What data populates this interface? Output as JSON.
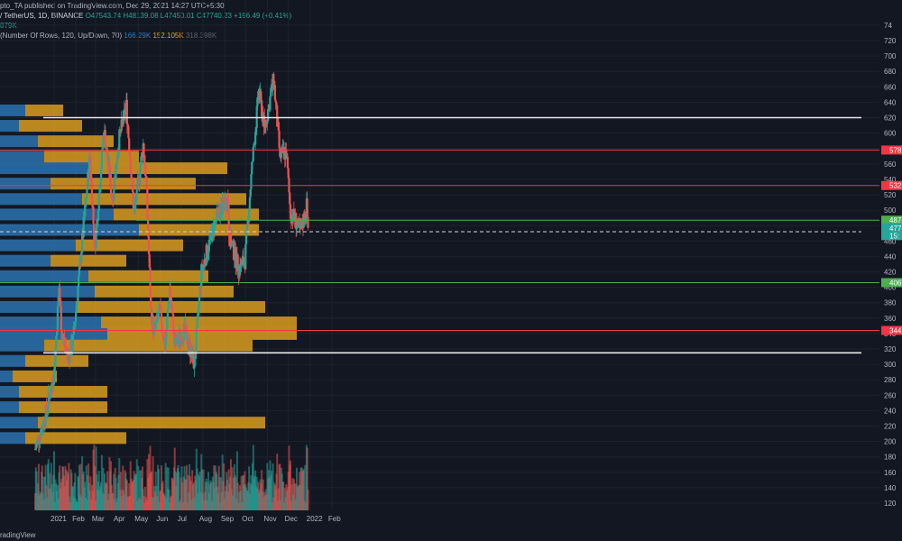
{
  "header": {
    "publisher": "pto_TA published on TradingView.com, Dec 29, 2021 14:27 UTC+5:30",
    "symbol": "/ TetherUS, 1D, BINANCE",
    "o": "O47543.74",
    "h": "H48139.08",
    "l": "L47450.01",
    "c": "C47740.23",
    "change": "+196.49 (+0.41%)",
    "vol": "879K",
    "vp_label": "(Number Of Rows, 120, Up/Down, 70)",
    "vp_up": "166.29K",
    "vp_down": "152.105K",
    "vp_total": "318.398K"
  },
  "brand": "radingView",
  "colors": {
    "bg": "#131722",
    "up": "#26a69a",
    "down": "#ef5350",
    "vp_up": "#2f7fc1",
    "vp_down": "#e6a520",
    "white_line": "#e8e8e8",
    "red_line": "#f23645",
    "green_line": "#4caf50"
  },
  "chart_data": {
    "type": "candlestick",
    "x_ticks": [
      "2021",
      "Feb",
      "Mar",
      "Apr",
      "May",
      "Jun",
      "Jul",
      "Aug",
      "Sep",
      "Oct",
      "Nov",
      "Dec",
      "2022",
      "Feb"
    ],
    "y_ticks": [
      "120",
      "140",
      "160",
      "180",
      "200",
      "220",
      "240",
      "260",
      "280",
      "300",
      "320",
      "340",
      "360",
      "380",
      "400",
      "420",
      "440",
      "460",
      "480",
      "500",
      "520",
      "540",
      "560",
      "580",
      "600",
      "620",
      "640",
      "660",
      "680",
      "700",
      "720",
      "74"
    ],
    "price_labels": [
      {
        "text": "578",
        "kind": "red"
      },
      {
        "text": "532",
        "kind": "red"
      },
      {
        "text": "487",
        "kind": "green"
      },
      {
        "text": "477",
        "kind": "teal"
      },
      {
        "text": "15:",
        "kind": "teal"
      },
      {
        "text": "406",
        "kind": "green"
      },
      {
        "text": "344",
        "kind": "red"
      }
    ],
    "levels": [
      {
        "value": 620,
        "style": "white",
        "from": "2021-01-01"
      },
      {
        "value": 578,
        "style": "red",
        "from": "2021-01-01"
      },
      {
        "value": 532,
        "style": "red",
        "from": "2021-01-01"
      },
      {
        "value": 487,
        "style": "green",
        "from": "2021-04-28"
      },
      {
        "value": 472,
        "style": "dashed",
        "from": "2021-01-01"
      },
      {
        "value": 406,
        "style": "green",
        "from": "2021-01-01"
      },
      {
        "value": 344,
        "style": "red",
        "from": "2021-01-01"
      },
      {
        "value": 315,
        "style": "white",
        "from": "2021-01-01"
      }
    ],
    "anchors": [
      [
        "2020-12-05",
        190
      ],
      [
        "2020-12-20",
        235
      ],
      [
        "2021-01-01",
        290
      ],
      [
        "2021-01-08",
        400
      ],
      [
        "2021-01-12",
        340
      ],
      [
        "2021-01-21",
        310
      ],
      [
        "2021-01-28",
        330
      ],
      [
        "2021-02-08",
        440
      ],
      [
        "2021-02-21",
        570
      ],
      [
        "2021-02-28",
        450
      ],
      [
        "2021-03-13",
        605
      ],
      [
        "2021-03-25",
        515
      ],
      [
        "2021-04-03",
        590
      ],
      [
        "2021-04-14",
        635
      ],
      [
        "2021-04-25",
        495
      ],
      [
        "2021-05-08",
        585
      ],
      [
        "2021-05-12",
        540
      ],
      [
        "2021-05-19",
        370
      ],
      [
        "2021-05-23",
        340
      ],
      [
        "2021-06-01",
        370
      ],
      [
        "2021-06-08",
        325
      ],
      [
        "2021-06-15",
        400
      ],
      [
        "2021-06-22",
        325
      ],
      [
        "2021-07-06",
        345
      ],
      [
        "2021-07-20",
        300
      ],
      [
        "2021-07-30",
        420
      ],
      [
        "2021-08-14",
        470
      ],
      [
        "2021-08-22",
        495
      ],
      [
        "2021-09-06",
        515
      ],
      [
        "2021-09-08",
        465
      ],
      [
        "2021-09-21",
        425
      ],
      [
        "2021-09-30",
        435
      ],
      [
        "2021-10-10",
        555
      ],
      [
        "2021-10-20",
        655
      ],
      [
        "2021-10-28",
        605
      ],
      [
        "2021-11-10",
        670
      ],
      [
        "2021-11-19",
        570
      ],
      [
        "2021-11-28",
        575
      ],
      [
        "2021-12-04",
        495
      ],
      [
        "2021-12-10",
        490
      ],
      [
        "2021-12-18",
        470
      ],
      [
        "2021-12-27",
        505
      ],
      [
        "2021-12-29",
        477
      ]
    ],
    "volume_profile": [
      {
        "price": 630,
        "up": 20,
        "down": 30
      },
      {
        "price": 610,
        "up": 15,
        "down": 50
      },
      {
        "price": 590,
        "up": 30,
        "down": 60
      },
      {
        "price": 570,
        "up": 35,
        "down": 75
      },
      {
        "price": 555,
        "up": 70,
        "down": 110
      },
      {
        "price": 535,
        "up": 40,
        "down": 115
      },
      {
        "price": 515,
        "up": 65,
        "down": 130
      },
      {
        "price": 495,
        "up": 90,
        "down": 115
      },
      {
        "price": 475,
        "up": 110,
        "down": 95
      },
      {
        "price": 455,
        "up": 60,
        "down": 85
      },
      {
        "price": 435,
        "up": 40,
        "down": 60
      },
      {
        "price": 415,
        "up": 70,
        "down": 95
      },
      {
        "price": 395,
        "up": 75,
        "down": 110
      },
      {
        "price": 375,
        "up": 60,
        "down": 150
      },
      {
        "price": 355,
        "up": 80,
        "down": 155
      },
      {
        "price": 340,
        "up": 85,
        "down": 150
      },
      {
        "price": 325,
        "up": 35,
        "down": 165
      },
      {
        "price": 305,
        "up": 20,
        "down": 50
      },
      {
        "price": 285,
        "up": 10,
        "down": 35
      },
      {
        "price": 265,
        "up": 15,
        "down": 70
      },
      {
        "price": 245,
        "up": 15,
        "down": 70
      },
      {
        "price": 225,
        "up": 30,
        "down": 180
      },
      {
        "price": 205,
        "up": 20,
        "down": 80
      }
    ]
  }
}
